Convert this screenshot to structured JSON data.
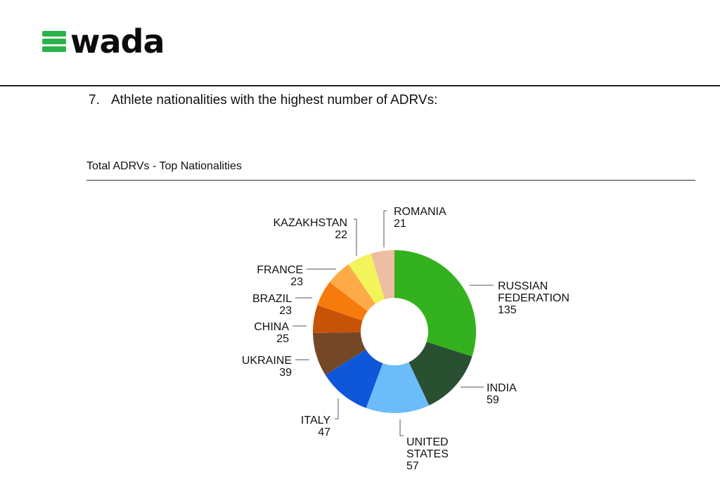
{
  "header": {
    "logo_text": "wada",
    "brand_color": "#2bb24c"
  },
  "section": {
    "number": "7.",
    "title": "Athlete nationalities with the highest number of ADRVs:"
  },
  "chart_data": {
    "type": "pie",
    "style": "donut",
    "title": "Total ADRVs - Top Nationalities",
    "categories": [
      "RUSSIAN FEDERATION",
      "INDIA",
      "UNITED STATES",
      "ITALY",
      "UKRAINE",
      "CHINA",
      "BRAZIL",
      "FRANCE",
      "KAZAKHSTAN",
      "ROMANIA"
    ],
    "values": [
      135,
      59,
      57,
      47,
      39,
      25,
      23,
      23,
      22,
      21
    ],
    "colors": [
      "#33b11f",
      "#2a5032",
      "#6cbcfa",
      "#0f57d9",
      "#744826",
      "#c75306",
      "#f77a0c",
      "#fdaa48",
      "#f3f35a",
      "#edbea2"
    ],
    "label_lines": [
      [
        "RUSSIAN",
        "FEDERATION",
        "135"
      ],
      [
        "INDIA",
        "59"
      ],
      [
        "UNITED",
        "STATES",
        "57"
      ],
      [
        "ITALY",
        "47"
      ],
      [
        "UKRAINE",
        "39"
      ],
      [
        "CHINA",
        "25"
      ],
      [
        "BRAZIL",
        "23"
      ],
      [
        "FRANCE",
        "23"
      ],
      [
        "KAZAKHSTAN",
        "22"
      ],
      [
        "ROMANIA",
        "21"
      ]
    ]
  }
}
